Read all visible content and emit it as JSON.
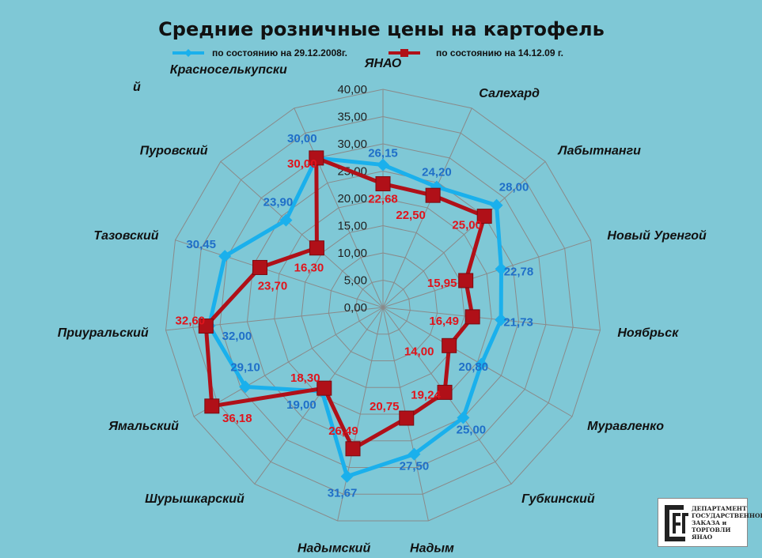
{
  "chart_data": {
    "type": "radar",
    "title": "Средние розничные цены на картофель",
    "categories": [
      "ЯНАО",
      "Салехард",
      "Лабытнанги",
      "Новый Уренгой",
      "Ноябрьск",
      "Муравленко",
      "Губкинский",
      "Надым",
      "Надымский",
      "Шурышкарский",
      "Ямальский",
      "Приуральский",
      "Тазовский",
      "Пуровский",
      "Красноселькупский"
    ],
    "category_display": [
      "ЯНАО",
      "Салехард",
      "Лабытнанги",
      "Новый Уренгой",
      "Ноябрьск",
      "Муравленко",
      "Губкинский",
      "Надым",
      "Надымский",
      "Шурышкарский",
      "Ямальский",
      "Приуральский",
      "Тазовский",
      "Пуровский",
      "Красноселькупски|й"
    ],
    "ticks": [
      "0,00",
      "5,00",
      "10,00",
      "15,00",
      "20,00",
      "25,00",
      "30,00",
      "35,00",
      "40,00"
    ],
    "rlim": [
      0,
      40
    ],
    "legend_position": "top",
    "series": [
      {
        "name": "по состоянию на 29.12.2008г.",
        "color": "#1ab0ec",
        "label_color": "#1f6fc8",
        "values": [
          26.15,
          24.2,
          28.0,
          22.78,
          21.73,
          20.8,
          25.0,
          27.5,
          31.67,
          19.0,
          29.1,
          32.0,
          30.45,
          23.9,
          30.0
        ],
        "labels": [
          "26,15",
          "24,20",
          "28,00",
          "22,78",
          "21,73",
          "20,80",
          "25,00",
          "27,50",
          "31,67",
          "19,00",
          "29,10",
          "32,00",
          "30,45",
          "23,90",
          "30,00"
        ]
      },
      {
        "name": "по состоянию на 14.12.09 г.",
        "color": "#b01018",
        "label_color": "#e0141c",
        "values": [
          22.68,
          22.5,
          25.0,
          15.95,
          16.49,
          14.0,
          19.24,
          20.75,
          26.49,
          18.3,
          36.18,
          32.6,
          23.7,
          16.3,
          30.0
        ],
        "labels": [
          "22,68",
          "22,50",
          "25,00",
          "15,95",
          "16,49",
          "14,00",
          "19,24",
          "20,75",
          "26,49",
          "18,30",
          "36,18",
          "32,60",
          "23,70",
          "16,30",
          "30,00"
        ]
      }
    ]
  },
  "logo": {
    "line1": "ДЕПАРТАМЕНТ",
    "line2": "ГОСУДАРСТВЕННОГО",
    "line3": "ЗАКАЗА и ТОРГОВЛИ ЯНАО"
  }
}
